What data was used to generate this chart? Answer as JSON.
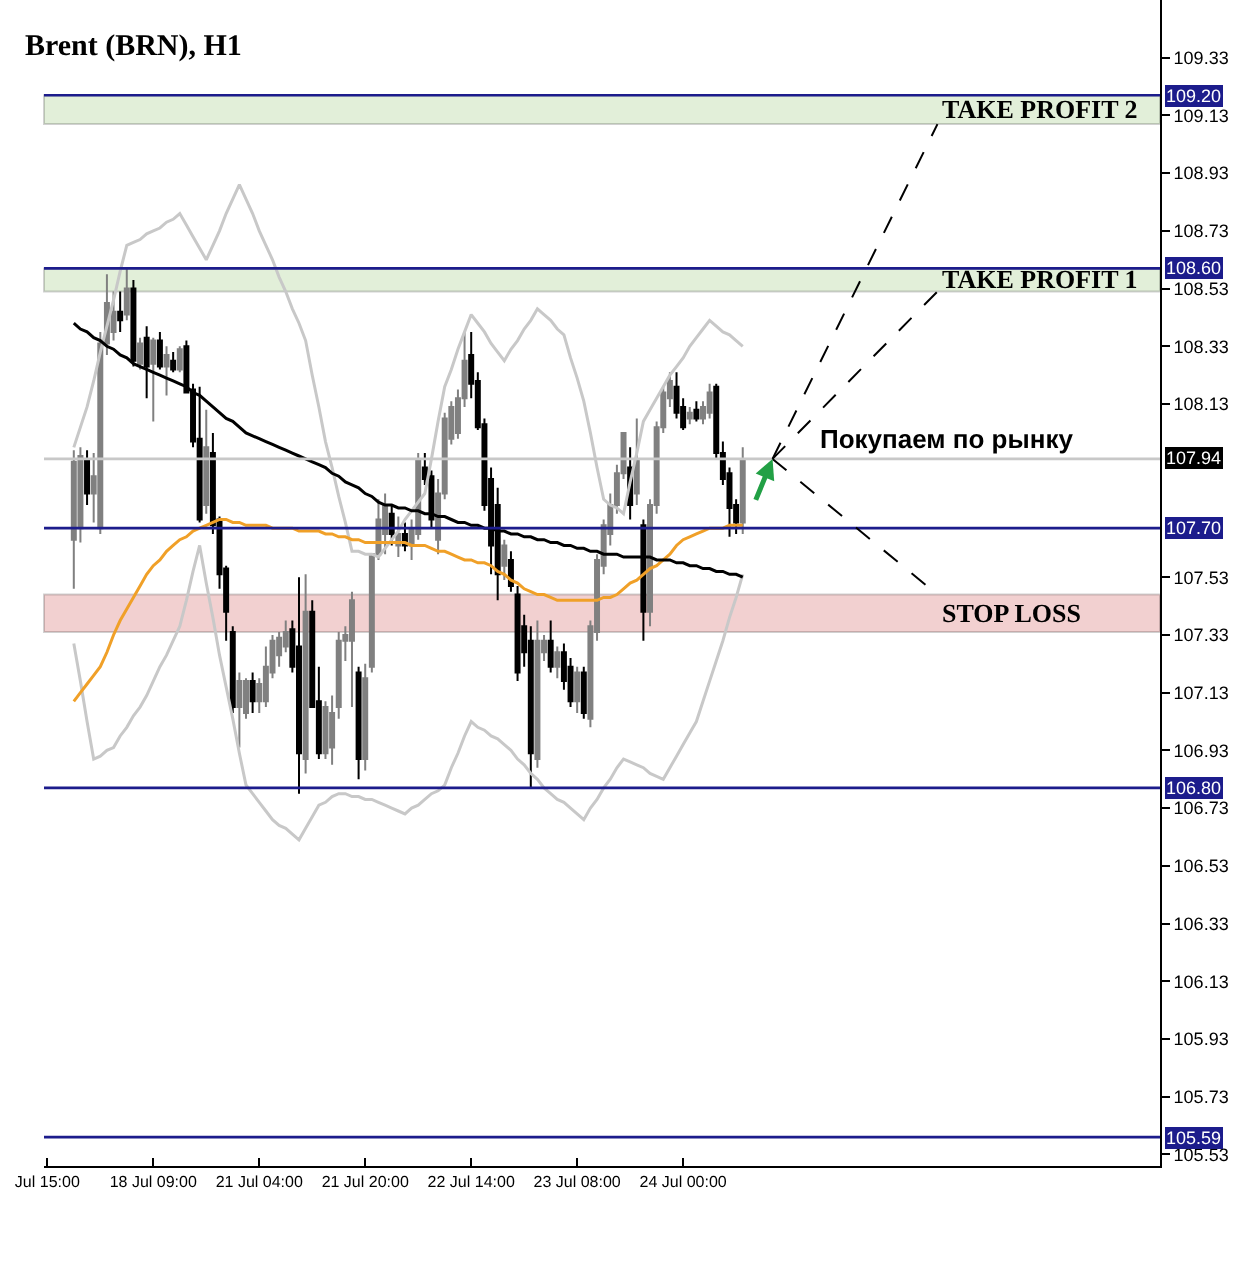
{
  "chart_data": {
    "type": "candlestick",
    "title": "Brent (BRN), H1",
    "categories": [
      "Jul 15:00",
      null,
      null,
      null,
      null,
      null,
      null,
      null,
      null,
      null,
      null,
      null,
      null,
      null,
      null,
      null,
      "18 Jul 09:00",
      null,
      null,
      null,
      null,
      null,
      null,
      null,
      null,
      null,
      null,
      null,
      null,
      null,
      null,
      null,
      "21 Jul 04:00",
      null,
      null,
      null,
      null,
      null,
      null,
      null,
      null,
      null,
      null,
      null,
      null,
      null,
      null,
      null,
      "21 Jul 20:00",
      null,
      null,
      null,
      null,
      null,
      null,
      null,
      null,
      null,
      null,
      null,
      null,
      null,
      null,
      null,
      "22 Jul 14:00",
      null,
      null,
      null,
      null,
      null,
      null,
      null,
      null,
      null,
      null,
      null,
      null,
      null,
      null,
      null,
      "23 Jul 08:00",
      null,
      null,
      null,
      null,
      null,
      null,
      null,
      null,
      null,
      null,
      null,
      null,
      null,
      null,
      null,
      "24 Jul 00:00",
      null,
      null,
      null,
      null,
      null,
      null,
      null,
      null,
      null
    ],
    "ohlc": [
      null,
      null,
      null,
      null,
      [
        107.66,
        107.97,
        107.49,
        107.93
      ],
      [
        107.7,
        107.98,
        107.65,
        107.95
      ],
      [
        107.94,
        107.97,
        107.78,
        107.82
      ],
      [
        107.82,
        107.96,
        107.72,
        107.88
      ],
      [
        107.7,
        108.38,
        107.68,
        108.34
      ],
      [
        108.34,
        108.58,
        108.3,
        108.48
      ],
      [
        108.38,
        108.52,
        108.35,
        108.45
      ],
      [
        108.45,
        108.52,
        108.38,
        108.42
      ],
      [
        108.44,
        108.6,
        108.42,
        108.53
      ],
      [
        108.53,
        108.56,
        108.26,
        108.28
      ],
      [
        108.27,
        108.36,
        108.25,
        108.34
      ],
      [
        108.36,
        108.4,
        108.15,
        108.26
      ],
      [
        108.27,
        108.36,
        108.07,
        108.35
      ],
      [
        108.35,
        108.38,
        108.25,
        108.26
      ],
      [
        108.26,
        108.33,
        108.16,
        108.3
      ],
      [
        108.28,
        108.31,
        108.24,
        108.25
      ],
      [
        108.25,
        108.33,
        108.24,
        108.32
      ],
      [
        108.33,
        108.35,
        108.17,
        108.17
      ],
      [
        108.18,
        108.2,
        107.98,
        108.0
      ],
      [
        108.01,
        108.19,
        107.72,
        107.73
      ],
      [
        107.78,
        108.11,
        107.75,
        107.98
      ],
      [
        107.96,
        108.03,
        107.68,
        107.71
      ],
      [
        107.73,
        107.74,
        107.49,
        107.54
      ],
      [
        107.56,
        107.57,
        107.31,
        107.41
      ],
      [
        107.34,
        107.36,
        107.06,
        107.08
      ],
      [
        107.08,
        107.2,
        106.94,
        107.17
      ],
      [
        107.06,
        107.18,
        107.04,
        107.17
      ],
      [
        107.17,
        107.2,
        107.06,
        107.1
      ],
      [
        107.1,
        107.18,
        107.06,
        107.16
      ],
      [
        107.1,
        107.29,
        107.08,
        107.22
      ],
      [
        107.2,
        107.33,
        107.18,
        107.31
      ],
      [
        107.26,
        107.34,
        107.22,
        107.32
      ],
      [
        107.29,
        107.38,
        107.27,
        107.34
      ],
      [
        107.35,
        107.38,
        107.2,
        107.22
      ],
      [
        107.29,
        107.53,
        106.78,
        106.92
      ],
      [
        106.9,
        107.54,
        106.85,
        107.41
      ],
      [
        107.41,
        107.45,
        107.08,
        107.08
      ],
      [
        107.1,
        107.22,
        106.9,
        106.92
      ],
      [
        106.92,
        107.1,
        106.9,
        107.08
      ],
      [
        106.94,
        107.12,
        106.88,
        107.06
      ],
      [
        107.08,
        107.34,
        107.04,
        107.31
      ],
      [
        107.31,
        107.36,
        107.24,
        107.33
      ],
      [
        107.31,
        107.48,
        107.08,
        107.45
      ],
      [
        107.2,
        107.22,
        106.83,
        106.9
      ],
      [
        106.9,
        107.23,
        106.86,
        107.18
      ],
      [
        107.22,
        107.61,
        107.2,
        107.61
      ],
      [
        107.61,
        107.8,
        107.59,
        107.73
      ],
      [
        107.68,
        107.82,
        107.61,
        107.78
      ],
      [
        107.75,
        107.78,
        107.64,
        107.68
      ],
      [
        107.64,
        107.74,
        107.6,
        107.68
      ],
      [
        107.68,
        107.72,
        107.62,
        107.64
      ],
      [
        107.64,
        107.73,
        107.59,
        107.7
      ],
      [
        107.68,
        107.96,
        107.66,
        107.94
      ],
      [
        107.91,
        107.96,
        107.85,
        107.87
      ],
      [
        107.88,
        107.9,
        107.7,
        107.73
      ],
      [
        107.66,
        107.87,
        107.61,
        107.82
      ],
      [
        107.82,
        108.1,
        107.8,
        108.08
      ],
      [
        108.01,
        108.14,
        107.99,
        108.12
      ],
      [
        108.03,
        108.18,
        108.01,
        108.15
      ],
      [
        108.15,
        108.38,
        108.12,
        108.28
      ],
      [
        108.3,
        108.38,
        108.15,
        108.2
      ],
      [
        108.21,
        108.24,
        108.04,
        108.05
      ],
      [
        108.06,
        108.08,
        107.76,
        107.78
      ],
      [
        107.87,
        107.91,
        107.54,
        107.64
      ],
      [
        107.78,
        107.84,
        107.45,
        107.54
      ],
      [
        107.57,
        107.66,
        107.52,
        107.64
      ],
      [
        107.59,
        107.62,
        107.48,
        107.5
      ],
      [
        107.47,
        107.5,
        107.17,
        107.2
      ],
      [
        107.36,
        107.4,
        107.22,
        107.27
      ],
      [
        107.31,
        107.36,
        106.8,
        106.92
      ],
      [
        106.9,
        107.38,
        106.87,
        107.31
      ],
      [
        107.27,
        107.33,
        107.24,
        107.31
      ],
      [
        107.31,
        107.38,
        107.2,
        107.22
      ],
      [
        107.22,
        107.29,
        107.18,
        107.27
      ],
      [
        107.27,
        107.3,
        107.14,
        107.17
      ],
      [
        107.22,
        107.25,
        107.08,
        107.1
      ],
      [
        107.1,
        107.22,
        107.06,
        107.2
      ],
      [
        107.2,
        107.22,
        107.04,
        107.06
      ],
      [
        107.04,
        107.38,
        107.01,
        107.36
      ],
      [
        107.34,
        107.61,
        107.31,
        107.59
      ],
      [
        107.57,
        107.73,
        107.54,
        107.71
      ],
      [
        107.68,
        107.82,
        107.64,
        107.78
      ],
      [
        107.78,
        107.92,
        107.75,
        107.89
      ],
      [
        107.89,
        108.03,
        107.87,
        108.03
      ],
      [
        107.91,
        107.98,
        107.73,
        107.78
      ],
      [
        107.82,
        108.08,
        107.78,
        107.94
      ],
      [
        107.71,
        107.73,
        107.31,
        107.41
      ],
      [
        107.41,
        107.8,
        107.36,
        107.78
      ],
      [
        107.78,
        108.07,
        107.75,
        108.05
      ],
      [
        108.05,
        108.19,
        108.03,
        108.17
      ],
      [
        108.15,
        108.24,
        108.12,
        108.21
      ],
      [
        108.19,
        108.24,
        108.08,
        108.1
      ],
      [
        108.12,
        108.15,
        108.04,
        108.05
      ],
      [
        108.08,
        108.12,
        108.06,
        108.1
      ],
      [
        108.11,
        108.14,
        108.07,
        108.08
      ],
      [
        108.08,
        108.14,
        108.06,
        108.12
      ],
      [
        108.1,
        108.2,
        108.08,
        108.17
      ],
      [
        108.19,
        108.2,
        107.94,
        107.96
      ],
      [
        107.96,
        108.0,
        107.85,
        107.87
      ],
      [
        107.89,
        107.91,
        107.67,
        107.77
      ],
      [
        107.78,
        107.8,
        107.68,
        107.72
      ],
      [
        107.72,
        107.98,
        107.68,
        107.94
      ]
    ],
    "colors": [
      null,
      null,
      null,
      null,
      "#808080",
      "#808080",
      "#000000",
      "#808080",
      "#808080",
      "#808080",
      "#808080",
      "#000000",
      "#808080",
      "#000000",
      "#808080",
      "#000000",
      "#808080",
      "#000000",
      "#808080",
      "#000000",
      "#808080",
      "#000000",
      "#000000",
      "#000000",
      "#808080",
      "#000000",
      "#000000",
      "#000000",
      "#000000",
      "#808080",
      "#808080",
      "#000000",
      "#808080",
      "#808080",
      "#808080",
      "#808080",
      "#808080",
      "#000000",
      "#000000",
      "#808080",
      "#000000",
      "#000000",
      "#808080",
      "#808080",
      "#808080",
      "#808080",
      "#808080",
      "#000000",
      "#808080",
      "#808080",
      "#808080",
      "#808080",
      "#000000",
      "#808080",
      "#000000",
      "#808080",
      "#808080",
      "#000000",
      "#000000",
      "#808080",
      "#808080",
      "#808080",
      "#808080",
      "#808080",
      "#000000",
      "#000000",
      "#000000",
      "#000000",
      "#000000",
      "#808080",
      "#000000",
      "#000000",
      "#000000",
      "#000000",
      "#808080",
      "#808080",
      "#000000",
      "#808080",
      "#000000",
      "#000000",
      "#808080",
      "#000000",
      "#808080",
      "#808080",
      "#808080",
      "#808080",
      "#808080",
      "#808080",
      "#000000",
      "#808080",
      "#000000",
      "#808080",
      "#808080",
      "#808080",
      "#808080",
      "#000000",
      "#000000",
      "#808080",
      "#000000",
      "#808080",
      "#808080",
      "#000000",
      "#000000",
      "#000000",
      "#000000",
      "#808080"
    ],
    "series": [
      {
        "type": "line",
        "color": "#c8c8c8",
        "values": [
          null,
          null,
          null,
          null,
          107.98,
          108.05,
          108.12,
          108.21,
          108.31,
          108.4,
          108.49,
          108.59,
          108.68,
          108.69,
          108.7,
          108.72,
          108.73,
          108.74,
          108.76,
          108.77,
          108.79,
          108.75,
          108.71,
          108.67,
          108.63,
          108.68,
          108.73,
          108.79,
          108.84,
          108.89,
          108.84,
          108.79,
          108.73,
          108.68,
          108.63,
          108.57,
          108.52,
          108.46,
          108.41,
          108.35,
          108.23,
          108.12,
          108.0,
          107.91,
          107.81,
          107.72,
          107.62,
          107.62,
          107.61,
          107.61,
          107.6,
          107.63,
          107.66,
          107.69,
          107.73,
          107.76,
          107.79,
          107.82,
          107.94,
          108.07,
          108.19,
          108.25,
          108.32,
          108.38,
          108.44,
          108.41,
          108.38,
          108.34,
          108.31,
          108.28,
          108.32,
          108.35,
          108.39,
          108.42,
          108.46,
          108.44,
          108.42,
          108.39,
          108.37,
          108.29,
          108.22,
          108.14,
          108.03,
          107.91,
          107.8,
          107.78,
          107.77,
          107.75,
          107.86,
          107.96,
          108.07,
          108.11,
          108.15,
          108.19,
          108.23,
          108.26,
          108.29,
          108.33,
          108.36,
          108.39,
          108.42,
          108.4,
          108.38,
          108.37,
          108.35,
          108.33
        ]
      },
      {
        "type": "line",
        "color": "#c8c8c8",
        "values": [
          null,
          null,
          null,
          null,
          107.3,
          107.17,
          107.03,
          106.9,
          106.91,
          106.93,
          106.94,
          106.98,
          107.01,
          107.05,
          107.08,
          107.12,
          107.17,
          107.22,
          107.26,
          107.31,
          107.36,
          107.45,
          107.55,
          107.64,
          107.51,
          107.39,
          107.26,
          107.15,
          107.04,
          106.92,
          106.81,
          106.78,
          106.75,
          106.72,
          106.69,
          106.67,
          106.66,
          106.64,
          106.62,
          106.66,
          106.7,
          106.74,
          106.75,
          106.77,
          106.78,
          106.78,
          106.77,
          106.77,
          106.76,
          106.76,
          106.75,
          106.74,
          106.73,
          106.72,
          106.71,
          106.73,
          106.74,
          106.76,
          106.78,
          106.79,
          106.81,
          106.87,
          106.92,
          106.98,
          107.03,
          107.01,
          107.0,
          106.98,
          106.97,
          106.95,
          106.93,
          106.9,
          106.88,
          106.85,
          106.83,
          106.8,
          106.78,
          106.76,
          106.75,
          106.73,
          106.71,
          106.69,
          106.73,
          106.76,
          106.8,
          106.83,
          106.87,
          106.9,
          106.89,
          106.88,
          106.87,
          106.85,
          106.84,
          106.83,
          106.87,
          106.91,
          106.95,
          106.99,
          107.03,
          107.1,
          107.17,
          107.24,
          107.31,
          107.39,
          107.46,
          107.54
        ]
      },
      {
        "type": "line",
        "color": "#f0a028",
        "values": [
          null,
          null,
          null,
          null,
          107.1,
          107.13,
          107.16,
          107.19,
          107.22,
          107.27,
          107.33,
          107.38,
          107.42,
          107.46,
          107.5,
          107.54,
          107.57,
          107.59,
          107.62,
          107.64,
          107.66,
          107.67,
          107.69,
          107.7,
          107.71,
          107.72,
          107.73,
          107.73,
          107.72,
          107.72,
          107.71,
          107.71,
          107.71,
          107.71,
          107.7,
          107.7,
          107.7,
          107.7,
          107.69,
          107.69,
          107.69,
          107.69,
          107.68,
          107.68,
          107.67,
          107.67,
          107.66,
          107.66,
          107.65,
          107.65,
          107.65,
          107.65,
          107.65,
          107.65,
          107.65,
          107.64,
          107.64,
          107.64,
          107.63,
          107.62,
          107.62,
          107.61,
          107.6,
          107.59,
          107.59,
          107.58,
          107.58,
          107.57,
          107.55,
          107.54,
          107.52,
          107.51,
          107.49,
          107.48,
          107.47,
          107.47,
          107.46,
          107.45,
          107.45,
          107.45,
          107.45,
          107.45,
          107.45,
          107.45,
          107.46,
          107.46,
          107.47,
          107.49,
          107.51,
          107.52,
          107.54,
          107.56,
          107.57,
          107.59,
          107.61,
          107.64,
          107.66,
          107.67,
          107.68,
          107.69,
          107.7,
          107.7,
          107.7,
          107.71,
          107.71,
          107.71
        ]
      },
      {
        "type": "line",
        "color": "#000000",
        "values": [
          null,
          null,
          null,
          null,
          108.41,
          108.39,
          108.38,
          108.36,
          108.35,
          108.33,
          108.32,
          108.3,
          108.29,
          108.27,
          108.26,
          108.25,
          108.24,
          108.23,
          108.22,
          108.21,
          108.2,
          108.19,
          108.17,
          108.16,
          108.14,
          108.12,
          108.1,
          108.08,
          108.07,
          108.05,
          108.03,
          108.02,
          108.01,
          108.0,
          107.99,
          107.98,
          107.97,
          107.96,
          107.95,
          107.94,
          107.93,
          107.92,
          107.91,
          107.89,
          107.88,
          107.86,
          107.85,
          107.84,
          107.82,
          107.81,
          107.79,
          107.78,
          107.78,
          107.77,
          107.77,
          107.76,
          107.76,
          107.75,
          107.75,
          107.74,
          107.74,
          107.73,
          107.72,
          107.72,
          107.71,
          107.71,
          107.7,
          107.7,
          107.69,
          107.69,
          107.68,
          107.68,
          107.67,
          107.67,
          107.66,
          107.66,
          107.65,
          107.65,
          107.64,
          107.64,
          107.63,
          107.63,
          107.62,
          107.62,
          107.61,
          107.61,
          107.61,
          107.6,
          107.6,
          107.6,
          107.6,
          107.6,
          107.59,
          107.59,
          107.59,
          107.58,
          107.58,
          107.57,
          107.57,
          107.56,
          107.56,
          107.55,
          107.55,
          107.54,
          107.54,
          107.53
        ]
      }
    ],
    "ylim": [
      105.49,
      109.53
    ],
    "yticks": [
      109.33,
      109.13,
      108.93,
      108.73,
      108.53,
      108.33,
      108.13,
      107.53,
      107.33,
      107.13,
      106.93,
      106.73,
      106.53,
      106.33,
      106.13,
      105.93,
      105.73,
      105.53
    ],
    "ref_lines": [
      {
        "axis": "y",
        "value": 109.2,
        "label": "109.20",
        "color": "#1c1c8c"
      },
      {
        "axis": "y",
        "value": 108.6,
        "label": "108.60",
        "color": "#1c1c8c"
      },
      {
        "axis": "y",
        "value": 107.94,
        "label": "107.94",
        "color": "#c8c8c8"
      },
      {
        "axis": "y",
        "value": 107.7,
        "label": "107.70",
        "color": "#1c1c8c"
      },
      {
        "axis": "y",
        "value": 106.8,
        "label": "106.80",
        "color": "#1c1c8c"
      },
      {
        "axis": "y",
        "value": 105.59,
        "label": "105.59",
        "color": "#1c1c8c"
      }
    ],
    "bands": [
      {
        "axis": "y",
        "from": 109.1,
        "to": 109.2,
        "label": "TAKE PROFIT 2",
        "color": "#e2efd9"
      },
      {
        "axis": "y",
        "from": 108.52,
        "to": 108.6,
        "label": "TAKE PROFIT 1",
        "color": "#e2efd9"
      },
      {
        "axis": "y",
        "from": 107.34,
        "to": 107.47,
        "label": "STOP LOSS",
        "color": "#f2d0d0"
      }
    ],
    "annotations": [
      "Покупаем по рынку"
    ]
  }
}
